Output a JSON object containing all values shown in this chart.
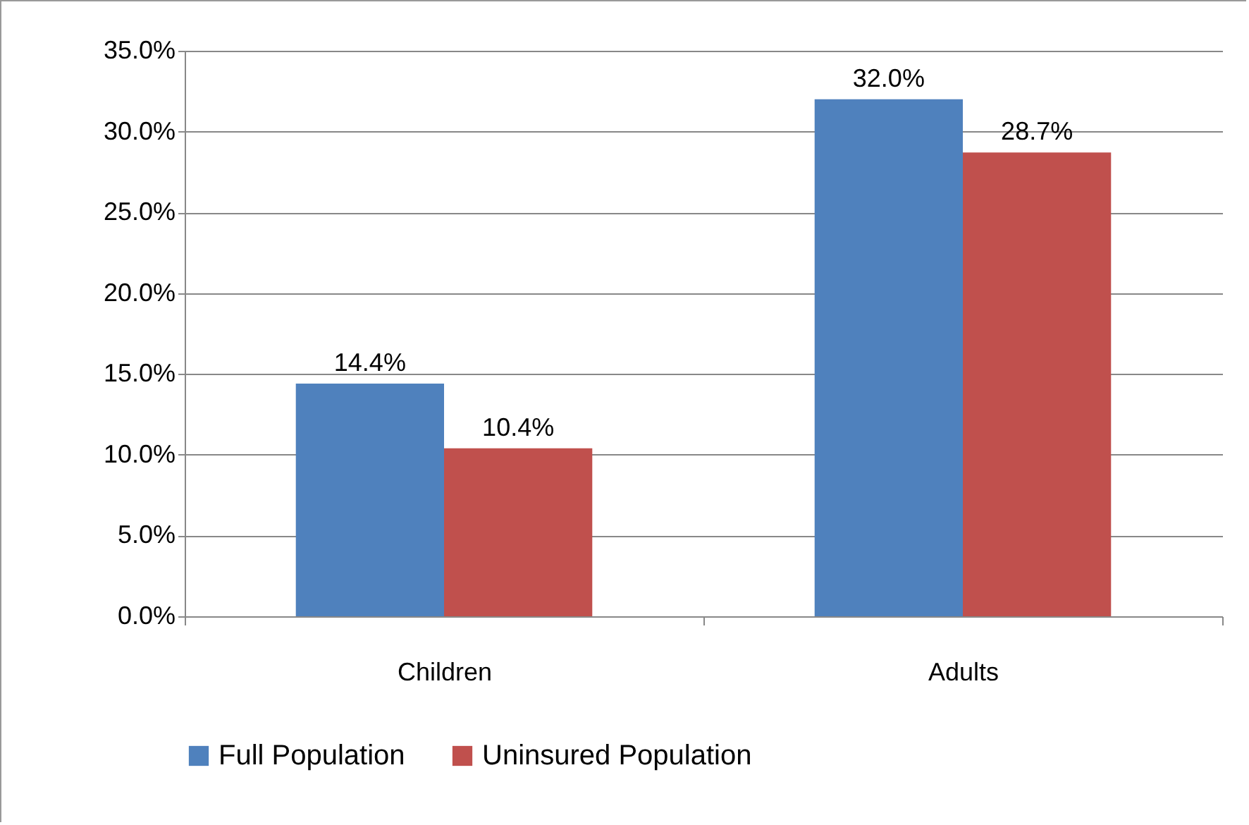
{
  "chart_data": {
    "type": "bar",
    "categories": [
      "Children",
      "Adults"
    ],
    "series": [
      {
        "name": "Full Population",
        "color": "#4f81bd",
        "values": [
          14.4,
          32.0
        ],
        "value_labels": [
          "14.4%",
          "32.0%"
        ]
      },
      {
        "name": "Uninsured Population",
        "color": "#c0504d",
        "values": [
          10.4,
          28.7
        ],
        "value_labels": [
          "10.4%",
          "28.7%"
        ]
      }
    ],
    "ylim": [
      0,
      35
    ],
    "yticks": [
      {
        "value": 0,
        "label": "0.0%"
      },
      {
        "value": 5,
        "label": "5.0%"
      },
      {
        "value": 10,
        "label": "10.0%"
      },
      {
        "value": 15,
        "label": "15.0%"
      },
      {
        "value": 20,
        "label": "20.0%"
      },
      {
        "value": 25,
        "label": "25.0%"
      },
      {
        "value": 30,
        "label": "30.0%"
      },
      {
        "value": 35,
        "label": "35.0%"
      }
    ],
    "grid": "y",
    "legend": "bottom"
  }
}
